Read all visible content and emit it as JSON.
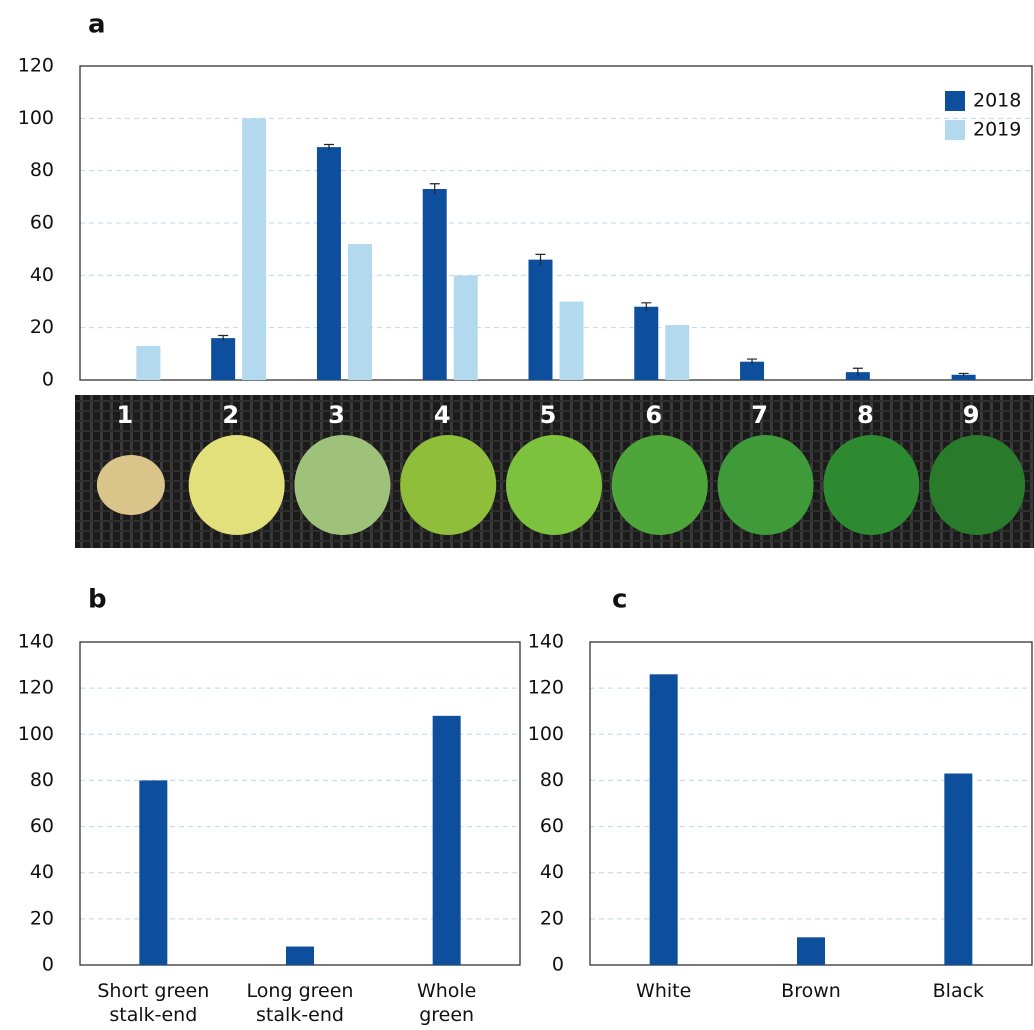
{
  "chart_data": [
    {
      "type": "bar",
      "panel_label": "a",
      "categories": [
        "1",
        "2",
        "3",
        "4",
        "5",
        "6",
        "7",
        "8",
        "9"
      ],
      "series": [
        {
          "name": "2018",
          "color": "#0d4f9c",
          "values": [
            null,
            16,
            89,
            73,
            46,
            28,
            7,
            3,
            2
          ],
          "errors": [
            null,
            1,
            1,
            2,
            2,
            1.5,
            1,
            1.5,
            0.5
          ]
        },
        {
          "name": "2019",
          "color": "#b3d9ef",
          "values": [
            13,
            100,
            52,
            40,
            30,
            21,
            null,
            null,
            null
          ]
        }
      ],
      "ylim": [
        0,
        120
      ],
      "yticks": [
        0,
        20,
        40,
        60,
        80,
        100,
        120
      ],
      "grid": true,
      "legend": "upper right"
    },
    {
      "type": "bar",
      "panel_label": "b",
      "categories": [
        [
          "Short green",
          "stalk-end"
        ],
        [
          "Long green",
          "stalk-end"
        ],
        [
          "Whole",
          "green"
        ]
      ],
      "values": [
        80,
        8,
        108
      ],
      "color": "#0d4f9c",
      "ylim": [
        0,
        140
      ],
      "yticks": [
        0,
        20,
        40,
        60,
        80,
        100,
        120,
        140
      ],
      "grid": true
    },
    {
      "type": "bar",
      "panel_label": "c",
      "categories": [
        [
          "White"
        ],
        [
          "Brown"
        ],
        [
          "Black"
        ]
      ],
      "values": [
        126,
        12,
        83
      ],
      "color": "#0d4f9c",
      "ylim": [
        0,
        140
      ],
      "yticks": [
        0,
        20,
        40,
        60,
        80,
        100,
        120,
        140
      ],
      "grid": true
    }
  ]
}
